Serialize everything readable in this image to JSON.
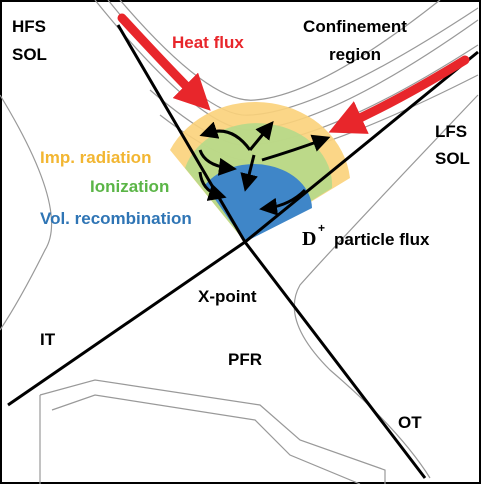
{
  "labels": {
    "hfs_sol": [
      "HFS",
      "SOL"
    ],
    "heat_flux": "Heat flux",
    "confinement_region": [
      "Confinement",
      "region"
    ],
    "lfs_sol": [
      "LFS",
      "SOL"
    ],
    "imp_radiation": "Imp. radiation",
    "ionization": "Ionization",
    "vol_recombination": "Vol. recombination",
    "particle_flux": {
      "base": "D",
      "sup": "+",
      "text": "particle flux"
    },
    "x_point": "X-point",
    "it": "IT",
    "pfr": "PFR",
    "ot": "OT"
  }
}
